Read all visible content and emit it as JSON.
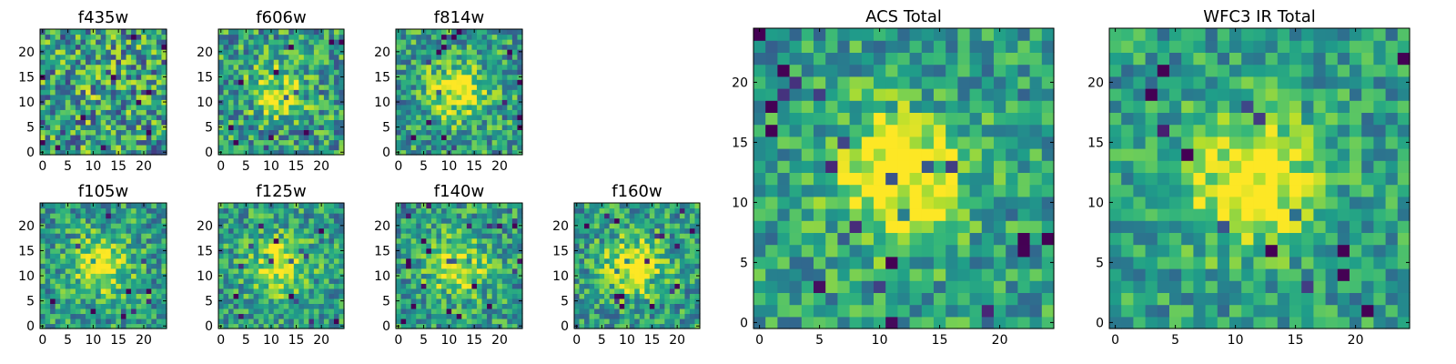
{
  "chart_data": [
    {
      "type": "heatmap",
      "title": "f435w",
      "xticks": [
        "0",
        "5",
        "10",
        "15",
        "20"
      ],
      "yticks": [
        "0",
        "5",
        "10",
        "15",
        "20"
      ],
      "grid_size": 25,
      "xlim": [
        0,
        25
      ],
      "ylim": [
        0,
        25
      ],
      "colormap": "viridis",
      "center_brightness": 0.05,
      "noise_level": 0.85
    },
    {
      "type": "heatmap",
      "title": "f606w",
      "xticks": [
        "0",
        "5",
        "10",
        "15",
        "20"
      ],
      "yticks": [
        "0",
        "5",
        "10",
        "15",
        "20"
      ],
      "grid_size": 25,
      "xlim": [
        0,
        25
      ],
      "ylim": [
        0,
        25
      ],
      "colormap": "viridis",
      "center_brightness": 0.3,
      "noise_level": 0.7
    },
    {
      "type": "heatmap",
      "title": "f814w",
      "xticks": [
        "0",
        "5",
        "10",
        "15",
        "20"
      ],
      "yticks": [
        "0",
        "5",
        "10",
        "15",
        "20"
      ],
      "grid_size": 25,
      "xlim": [
        0,
        25
      ],
      "ylim": [
        0,
        25
      ],
      "colormap": "viridis",
      "center_brightness": 0.45,
      "noise_level": 0.65
    },
    {
      "type": "heatmap",
      "title": "f105w",
      "xticks": [
        "0",
        "5",
        "10",
        "15",
        "20"
      ],
      "yticks": [
        "0",
        "5",
        "10",
        "15",
        "20"
      ],
      "grid_size": 25,
      "xlim": [
        0,
        25
      ],
      "ylim": [
        0,
        25
      ],
      "colormap": "viridis",
      "center_brightness": 0.45,
      "noise_level": 0.6
    },
    {
      "type": "heatmap",
      "title": "f125w",
      "xticks": [
        "0",
        "5",
        "10",
        "15",
        "20"
      ],
      "yticks": [
        "0",
        "5",
        "10",
        "15",
        "20"
      ],
      "grid_size": 25,
      "xlim": [
        0,
        25
      ],
      "ylim": [
        0,
        25
      ],
      "colormap": "viridis",
      "center_brightness": 0.45,
      "noise_level": 0.6
    },
    {
      "type": "heatmap",
      "title": "f140w",
      "xticks": [
        "0",
        "5",
        "10",
        "15",
        "20"
      ],
      "yticks": [
        "0",
        "5",
        "10",
        "15",
        "20"
      ],
      "grid_size": 25,
      "xlim": [
        0,
        25
      ],
      "ylim": [
        0,
        25
      ],
      "colormap": "viridis",
      "center_brightness": 0.45,
      "noise_level": 0.6
    },
    {
      "type": "heatmap",
      "title": "f160w",
      "xticks": [
        "0",
        "5",
        "10",
        "15",
        "20"
      ],
      "yticks": [
        "0",
        "5",
        "10",
        "15",
        "20"
      ],
      "grid_size": 25,
      "xlim": [
        0,
        25
      ],
      "ylim": [
        0,
        25
      ],
      "colormap": "viridis",
      "center_brightness": 0.5,
      "noise_level": 0.6
    },
    {
      "type": "heatmap",
      "title": "ACS Total",
      "xticks": [
        "0",
        "5",
        "10",
        "15",
        "20"
      ],
      "yticks": [
        "0",
        "5",
        "10",
        "15",
        "20"
      ],
      "grid_size": 25,
      "xlim": [
        0,
        25
      ],
      "ylim": [
        0,
        25
      ],
      "colormap": "viridis",
      "center_brightness": 0.55,
      "noise_level": 0.55
    },
    {
      "type": "heatmap",
      "title": "WFC3 IR Total",
      "xticks": [
        "0",
        "5",
        "10",
        "15",
        "20"
      ],
      "yticks": [
        "0",
        "5",
        "10",
        "15",
        "20"
      ],
      "grid_size": 25,
      "xlim": [
        0,
        25
      ],
      "ylim": [
        0,
        25
      ],
      "colormap": "viridis",
      "center_brightness": 0.55,
      "noise_level": 0.5
    }
  ]
}
